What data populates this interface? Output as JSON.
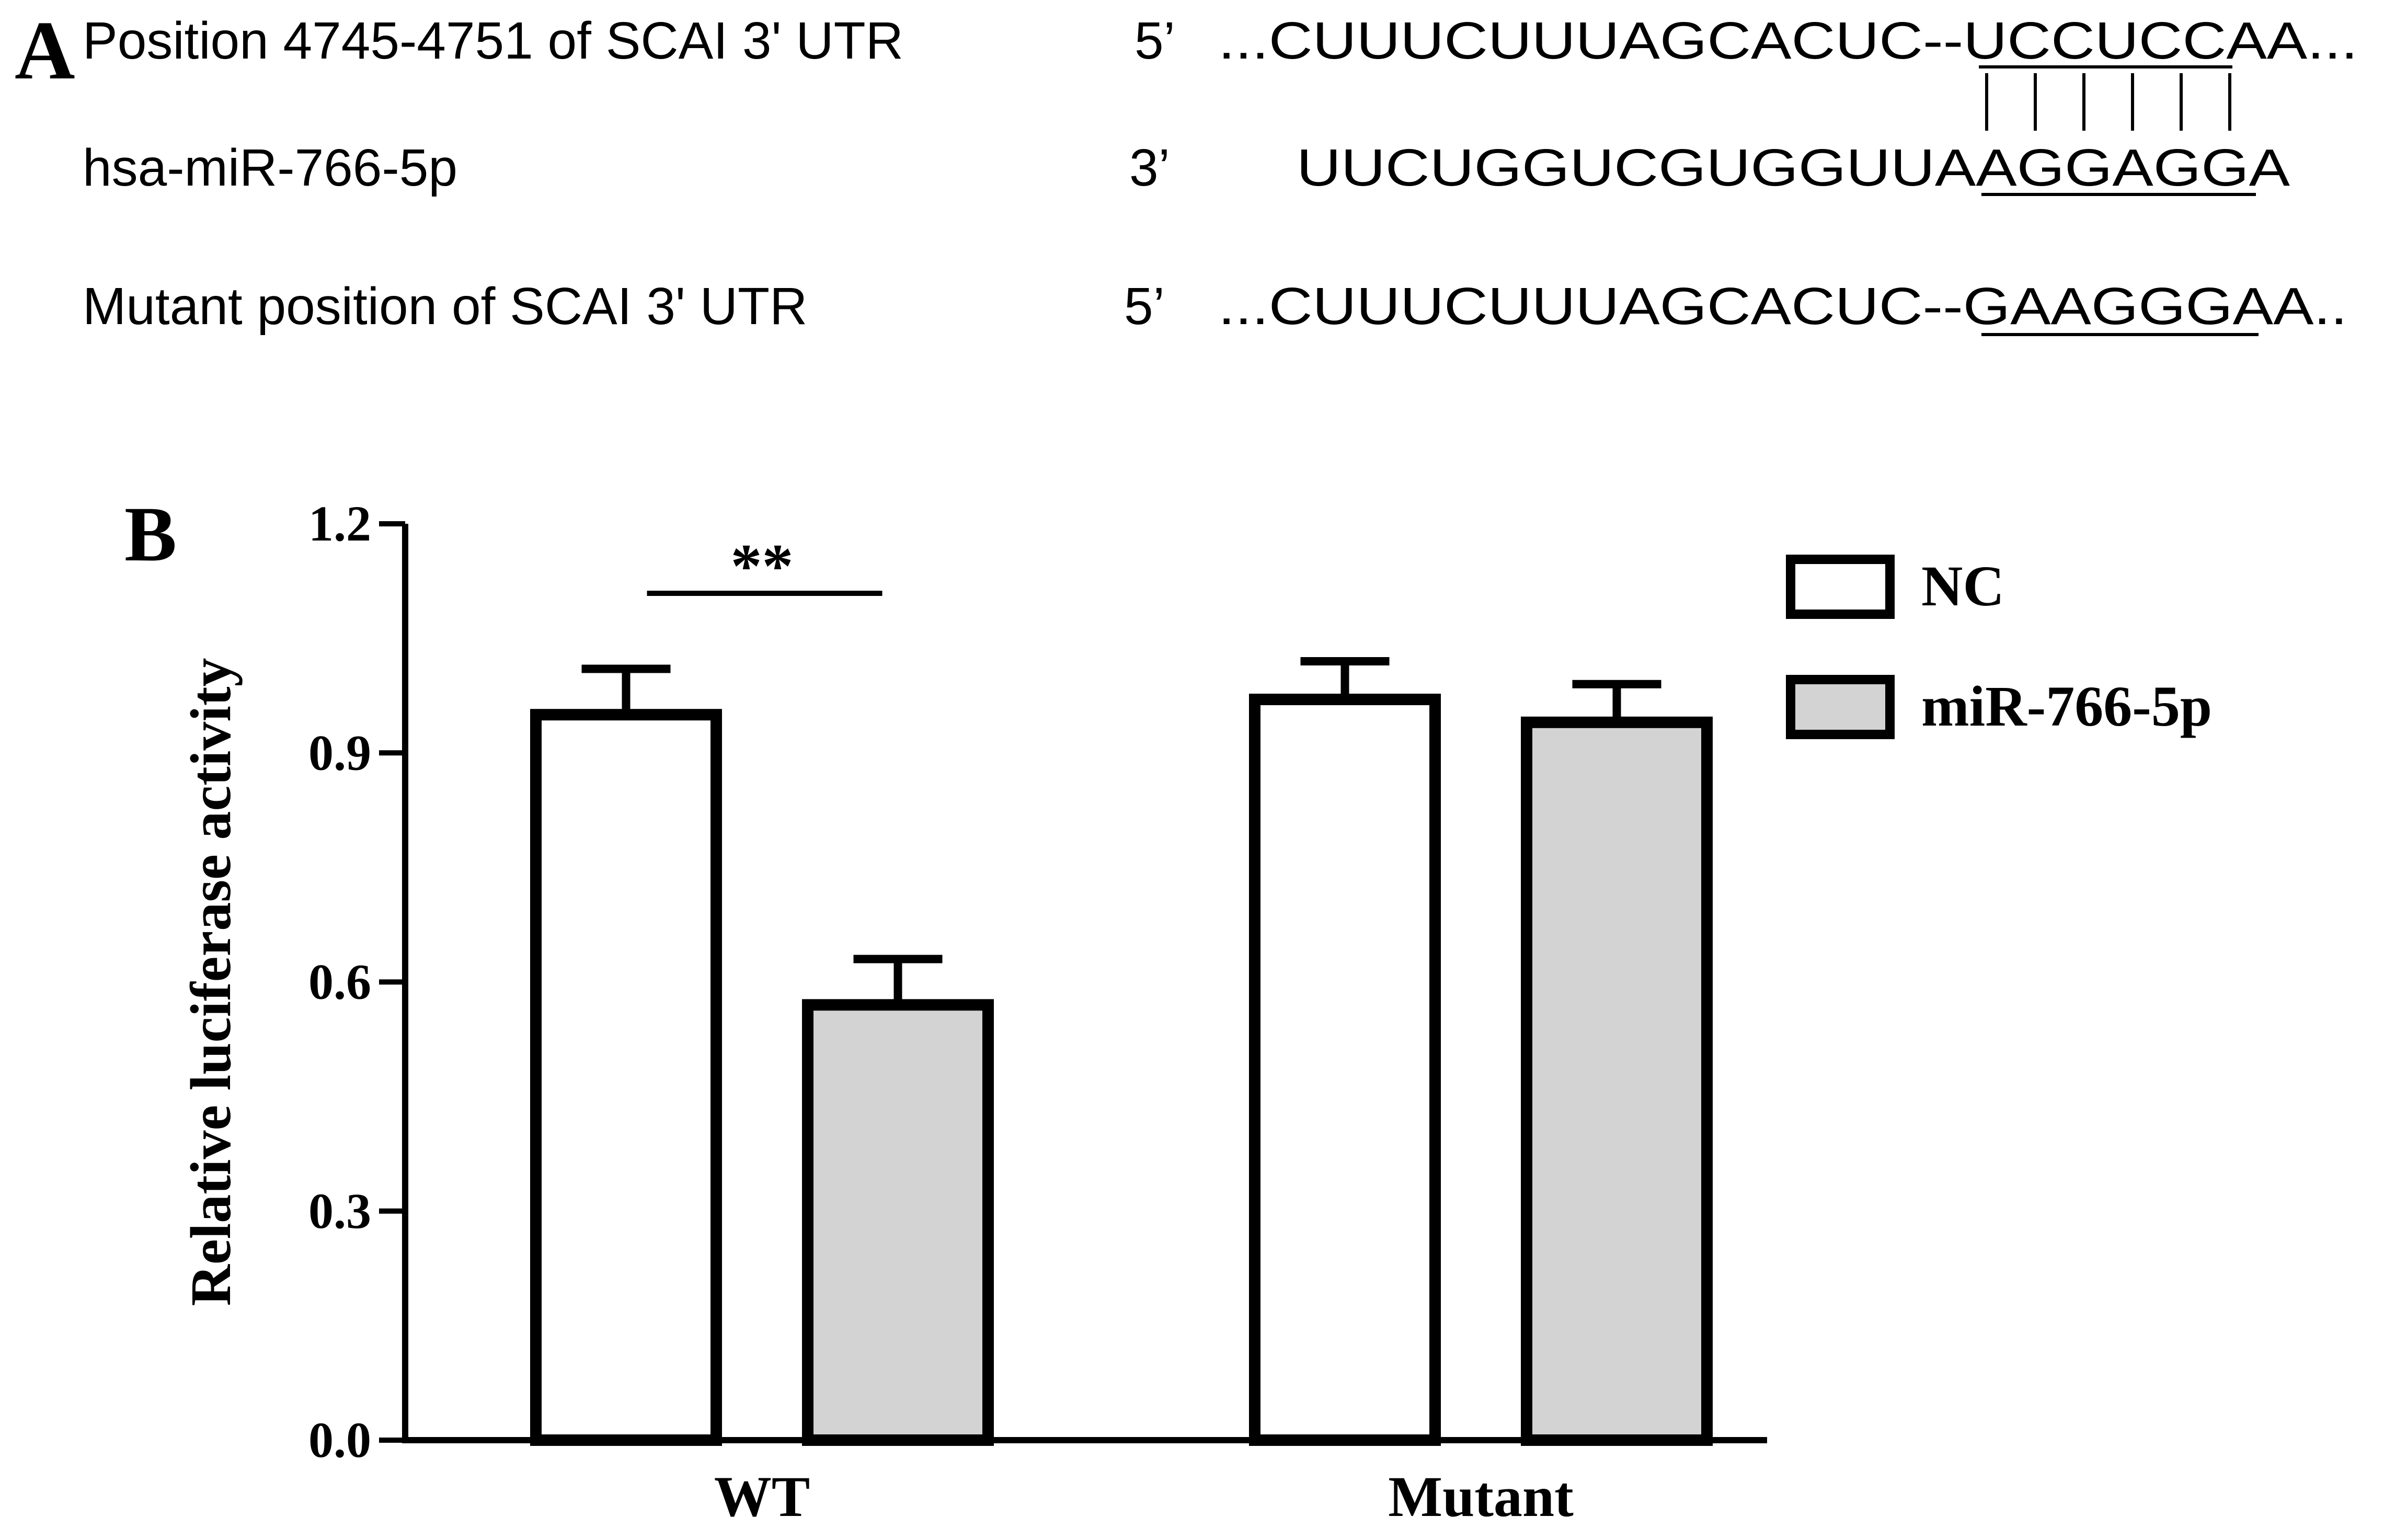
{
  "panel_a": {
    "letter": "A",
    "rows": [
      {
        "label": "Position 4745-4751 of SCAI 3' UTR",
        "end": "5’",
        "prefix": "...CUUUCUUUAGCACUC--",
        "site": "UCCUCC",
        "suffix": "AA..."
      },
      {
        "label": "hsa-miR-766-5p",
        "end": "3’",
        "prefix": "UUCUGGUCGUGGUUA",
        "site": "AGGAGG",
        "suffix": "A"
      },
      {
        "label": "Mutant position of SCAI 3' UTR",
        "end": "5’",
        "prefix": "...CUUUCUUUAGCACUC--",
        "site": "GAAGGG",
        "suffix": "AA.."
      }
    ],
    "pairing_lines": 6
  },
  "panel_b": {
    "letter": "B"
  },
  "chart_data": {
    "type": "bar",
    "ylabel": "Relative luciferase activity",
    "xlabel": "",
    "ylim": [
      0,
      1.2
    ],
    "yticks": [
      "0.0",
      "0.3",
      "0.6",
      "0.9",
      "1.2"
    ],
    "categories": [
      "WT",
      "Mutant"
    ],
    "series": [
      {
        "name": "NC",
        "values": [
          0.95,
          0.97
        ],
        "errors": [
          0.06,
          0.05
        ],
        "color": "#ffffff"
      },
      {
        "name": "miR-766-5p",
        "values": [
          0.57,
          0.94
        ],
        "errors": [
          0.06,
          0.05
        ],
        "color": "#d3d3d3"
      }
    ],
    "annotations": [
      {
        "text": "**",
        "category": "WT"
      }
    ],
    "legend_position": "top-right",
    "grid": false
  }
}
